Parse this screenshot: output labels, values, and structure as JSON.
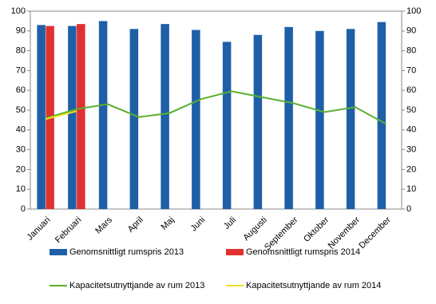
{
  "chart_data": {
    "type": "bar-line",
    "categories": [
      "Januari",
      "Februari",
      "Mars",
      "April",
      "Maj",
      "Juni",
      "Juli",
      "Augusti",
      "September",
      "Oktober",
      "November",
      "December"
    ],
    "series": [
      {
        "name": "Genomsnittligt rumspris 2013",
        "type": "bar",
        "color": "#1f5fa8",
        "values": [
          93,
          92.5,
          95,
          91,
          93.5,
          90.5,
          84.5,
          88,
          92,
          90,
          91,
          94.5
        ]
      },
      {
        "name": "Genomsnittligt rumspris 2014",
        "type": "bar",
        "color": "#e03030",
        "values": [
          92.5,
          93.5,
          null,
          null,
          null,
          null,
          null,
          null,
          null,
          null,
          null,
          null
        ]
      },
      {
        "name": "Kapacitetsutnyttjande av rum 2013",
        "type": "line",
        "axis": "y2",
        "color": "#5ab030",
        "values": [
          46,
          50.5,
          53,
          46.5,
          48.5,
          55.5,
          59.5,
          56.5,
          53.5,
          49,
          51.5,
          43
        ]
      },
      {
        "name": "Kapacitetsutnyttjande av rum 2014",
        "type": "line",
        "axis": "y2",
        "color": "#f0e020",
        "values": [
          45.5,
          49.5,
          null,
          null,
          null,
          null,
          null,
          null,
          null,
          null,
          null,
          null
        ]
      }
    ],
    "ylim": [
      0,
      100
    ],
    "yticks": [
      0,
      10,
      20,
      30,
      40,
      50,
      60,
      70,
      80,
      90,
      100
    ],
    "y2lim": [
      0,
      100
    ],
    "y2ticks": [
      0,
      10,
      20,
      30,
      40,
      50,
      60,
      70,
      80,
      90,
      100
    ],
    "grid": false,
    "legend": "bottom"
  }
}
